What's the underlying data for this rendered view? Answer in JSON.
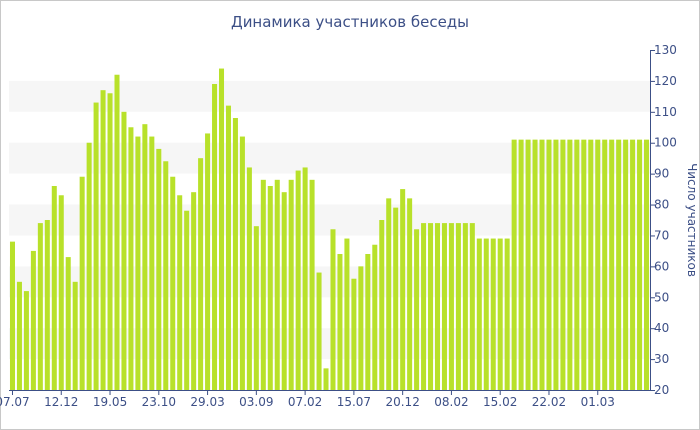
{
  "chart_data": {
    "type": "bar",
    "title": "Динамика участников беседы",
    "ylabel": "Число участников",
    "xlabel": "",
    "ylim": [
      20,
      130
    ],
    "y_ticks": [
      20,
      30,
      40,
      50,
      60,
      70,
      80,
      90,
      100,
      110,
      120,
      130
    ],
    "y_axis_position": "right",
    "x_tick_labels": [
      "07.07",
      "12.12",
      "19.05",
      "23.10",
      "29.03",
      "03.09",
      "07.02",
      "15.07",
      "20.12",
      "08.02",
      "15.02",
      "22.02",
      "01.03"
    ],
    "x_tick_indices": [
      0,
      7,
      14,
      21,
      28,
      35,
      42,
      49,
      56,
      63,
      70,
      77,
      84
    ],
    "bar_color": "#b8e12a",
    "band_color": "#f6f6f6",
    "grid": "alternating horizontal bands",
    "legend": "none",
    "values": [
      68,
      55,
      52,
      65,
      74,
      75,
      86,
      83,
      63,
      55,
      89,
      100,
      113,
      117,
      116,
      122,
      110,
      105,
      102,
      106,
      102,
      98,
      94,
      89,
      83,
      78,
      84,
      95,
      103,
      119,
      124,
      112,
      108,
      102,
      92,
      73,
      88,
      86,
      88,
      84,
      88,
      91,
      92,
      88,
      58,
      27,
      72,
      64,
      69,
      56,
      60,
      64,
      67,
      75,
      82,
      79,
      85,
      82,
      72,
      74,
      74,
      74,
      74,
      74,
      74,
      74,
      74,
      69,
      69,
      69,
      69,
      69,
      101,
      101,
      101,
      101,
      101,
      101,
      101,
      101,
      101,
      101,
      101,
      101,
      101,
      101,
      101,
      101,
      101,
      101,
      101,
      101
    ]
  }
}
